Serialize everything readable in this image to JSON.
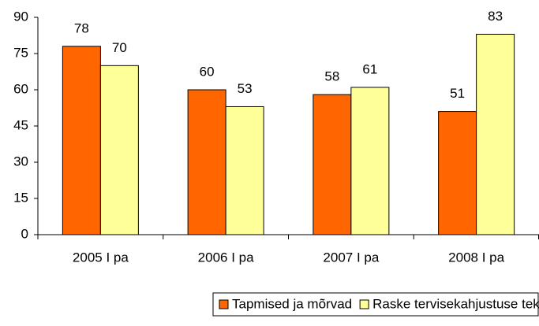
{
  "chart_data": {
    "type": "bar",
    "categories": [
      "2005 I pa",
      "2006 I pa",
      "2007 I pa",
      "2008 I pa"
    ],
    "series": [
      {
        "name": "Tapmised ja mõrvad",
        "color": "#ff6600",
        "values": [
          78,
          60,
          58,
          51
        ]
      },
      {
        "name": "Raske tervisekahjustuse tekitamine",
        "color": "#ffff99",
        "values": [
          70,
          53,
          61,
          83
        ]
      }
    ],
    "ylim": [
      0,
      90
    ],
    "yticks": [
      0,
      15,
      30,
      45,
      60,
      75,
      90
    ],
    "grid": false,
    "legend": "bottom"
  }
}
